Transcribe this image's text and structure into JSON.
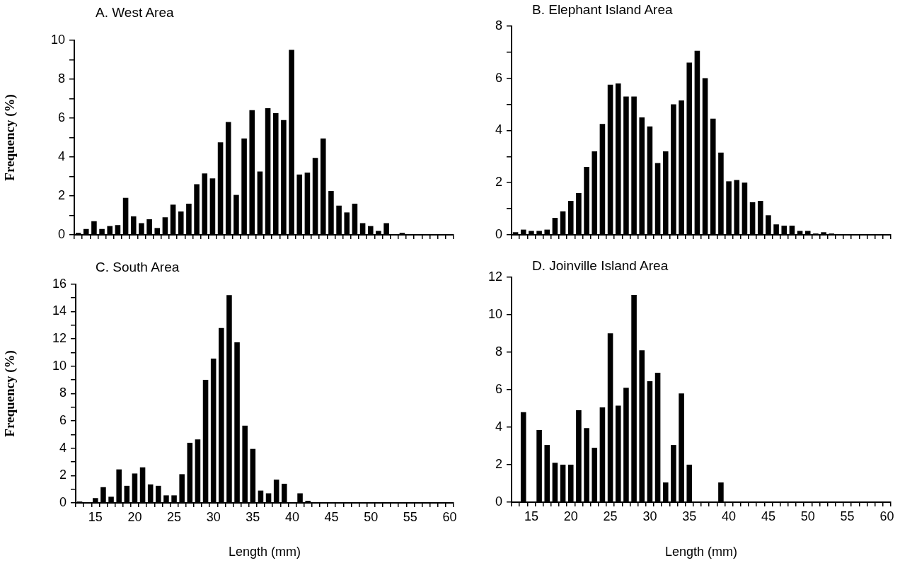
{
  "chart_data": [
    {
      "type": "bar",
      "title": "A. West Area",
      "ylabel": "Frequency (%)",
      "tick_labels": "y",
      "color": "#000000",
      "categories": [
        null,
        null,
        "15",
        null,
        null,
        null,
        null,
        "20",
        null,
        null,
        null,
        null,
        "25",
        null,
        null,
        null,
        null,
        "30",
        null,
        null,
        null,
        null,
        "35",
        null,
        null,
        null,
        null,
        "40",
        null,
        null,
        null,
        null,
        "45",
        null,
        null,
        null,
        null,
        "50",
        null,
        null,
        null,
        null,
        "55",
        null,
        null,
        null,
        null,
        "60"
      ],
      "values": [
        0.1,
        0.3,
        0.7,
        0.3,
        0.45,
        0.5,
        1.9,
        0.95,
        0.6,
        0.8,
        0.35,
        0.9,
        1.55,
        1.2,
        1.6,
        2.6,
        3.15,
        2.9,
        4.75,
        5.8,
        2.05,
        4.95,
        6.4,
        3.25,
        6.5,
        6.25,
        5.9,
        9.5,
        3.1,
        3.2,
        3.95,
        4.95,
        2.25,
        1.5,
        1.15,
        1.6,
        0.6,
        0.45,
        0.2,
        0.6,
        null,
        0.1,
        0,
        0,
        0,
        0,
        0,
        0
      ],
      "ylim": [
        0,
        10
      ],
      "yticks": [
        0,
        {
          "value": 1,
          "label": null
        },
        2,
        {
          "value": 3,
          "label": null
        },
        4,
        {
          "value": 5,
          "label": null
        },
        6,
        {
          "value": 7,
          "label": null
        },
        8,
        {
          "value": 9,
          "label": null
        },
        10
      ]
    },
    {
      "type": "bar",
      "title": "B. Elephant Island Area",
      "tick_labels": "y",
      "color": "#000000",
      "categories": [
        null,
        null,
        "15",
        null,
        null,
        null,
        null,
        "20",
        null,
        null,
        null,
        null,
        "25",
        null,
        null,
        null,
        null,
        "30",
        null,
        null,
        null,
        null,
        "35",
        null,
        null,
        null,
        null,
        "40",
        null,
        null,
        null,
        null,
        "45",
        null,
        null,
        null,
        null,
        "50",
        null,
        null,
        null,
        null,
        "55",
        null,
        null,
        null,
        null,
        "60"
      ],
      "values": [
        0.1,
        0.2,
        0.15,
        0.15,
        0.2,
        0.65,
        0.9,
        1.3,
        1.6,
        2.6,
        3.2,
        4.25,
        5.75,
        5.8,
        5.3,
        5.3,
        4.5,
        4.15,
        2.75,
        3.2,
        5.0,
        5.15,
        6.6,
        7.05,
        6.0,
        4.45,
        3.15,
        2.05,
        2.1,
        2.0,
        1.25,
        1.3,
        0.75,
        0.4,
        0.35,
        0.35,
        0.15,
        0.15,
        0.05,
        0.1,
        0.05,
        0,
        0,
        0,
        0,
        0,
        0,
        0
      ],
      "ylim": [
        0,
        8
      ],
      "yticks": [
        0,
        {
          "value": 1,
          "label": null
        },
        2,
        {
          "value": 3,
          "label": null
        },
        4,
        {
          "value": 5,
          "label": null
        },
        6,
        {
          "value": 7,
          "label": null
        },
        8
      ]
    },
    {
      "type": "bar",
      "title": "C. South Area",
      "ylabel": "Frequency (%)",
      "xlabel": "Length (mm)",
      "color": "#000000",
      "categories": [
        null,
        null,
        "15",
        null,
        null,
        null,
        null,
        "20",
        null,
        null,
        null,
        null,
        "25",
        null,
        null,
        null,
        null,
        "30",
        null,
        null,
        null,
        null,
        "35",
        null,
        null,
        null,
        null,
        "40",
        null,
        null,
        null,
        null,
        "45",
        null,
        null,
        null,
        null,
        "50",
        null,
        null,
        null,
        null,
        "55",
        null,
        null,
        null,
        null,
        "60"
      ],
      "values": [
        0.1,
        0,
        0.35,
        1.15,
        0.45,
        2.45,
        1.25,
        2.15,
        2.6,
        1.35,
        1.25,
        0.55,
        0.55,
        2.1,
        4.4,
        4.65,
        9.0,
        10.55,
        12.8,
        15.2,
        11.75,
        5.65,
        3.95,
        0.9,
        0.7,
        1.7,
        1.4,
        0.05,
        0.7,
        0.15,
        0.05,
        0.05,
        0,
        0,
        0,
        0,
        0,
        0,
        0,
        0,
        0,
        0,
        0,
        0,
        0,
        0,
        0,
        0
      ],
      "ylim": [
        0,
        16
      ],
      "yticks": [
        0,
        {
          "value": 1,
          "label": null
        },
        2,
        {
          "value": 3,
          "label": null
        },
        4,
        {
          "value": 5,
          "label": null
        },
        6,
        {
          "value": 7,
          "label": null
        },
        8,
        {
          "value": 9,
          "label": null
        },
        10,
        {
          "value": 11,
          "label": null
        },
        12,
        {
          "value": 13,
          "label": null
        },
        14,
        {
          "value": 15,
          "label": null
        },
        16
      ]
    },
    {
      "type": "bar",
      "title": "D. Joinville Island Area",
      "xlabel": "Length (mm)",
      "color": "#000000",
      "categories": [
        null,
        null,
        "15",
        null,
        null,
        null,
        null,
        "20",
        null,
        null,
        null,
        null,
        "25",
        null,
        null,
        null,
        null,
        "30",
        null,
        null,
        null,
        null,
        "35",
        null,
        null,
        null,
        null,
        "40",
        null,
        null,
        null,
        null,
        "45",
        null,
        null,
        null,
        null,
        "50",
        null,
        null,
        null,
        null,
        "55",
        null,
        null,
        null,
        null,
        "60"
      ],
      "values": [
        0,
        4.8,
        0,
        3.85,
        3.05,
        2.1,
        2.0,
        2.0,
        4.9,
        3.95,
        2.9,
        5.05,
        9.0,
        5.15,
        6.1,
        11.05,
        8.1,
        6.45,
        6.9,
        1.05,
        3.05,
        5.8,
        2.0,
        0,
        null,
        null,
        1.05,
        0,
        0,
        0,
        0,
        0,
        0,
        0,
        0,
        0,
        0,
        0,
        0,
        0,
        0,
        0,
        0,
        0,
        0,
        0,
        0,
        0
      ],
      "ylim": [
        0,
        12
      ],
      "yticks": [
        0,
        2,
        4,
        6,
        8,
        10,
        12
      ]
    }
  ]
}
